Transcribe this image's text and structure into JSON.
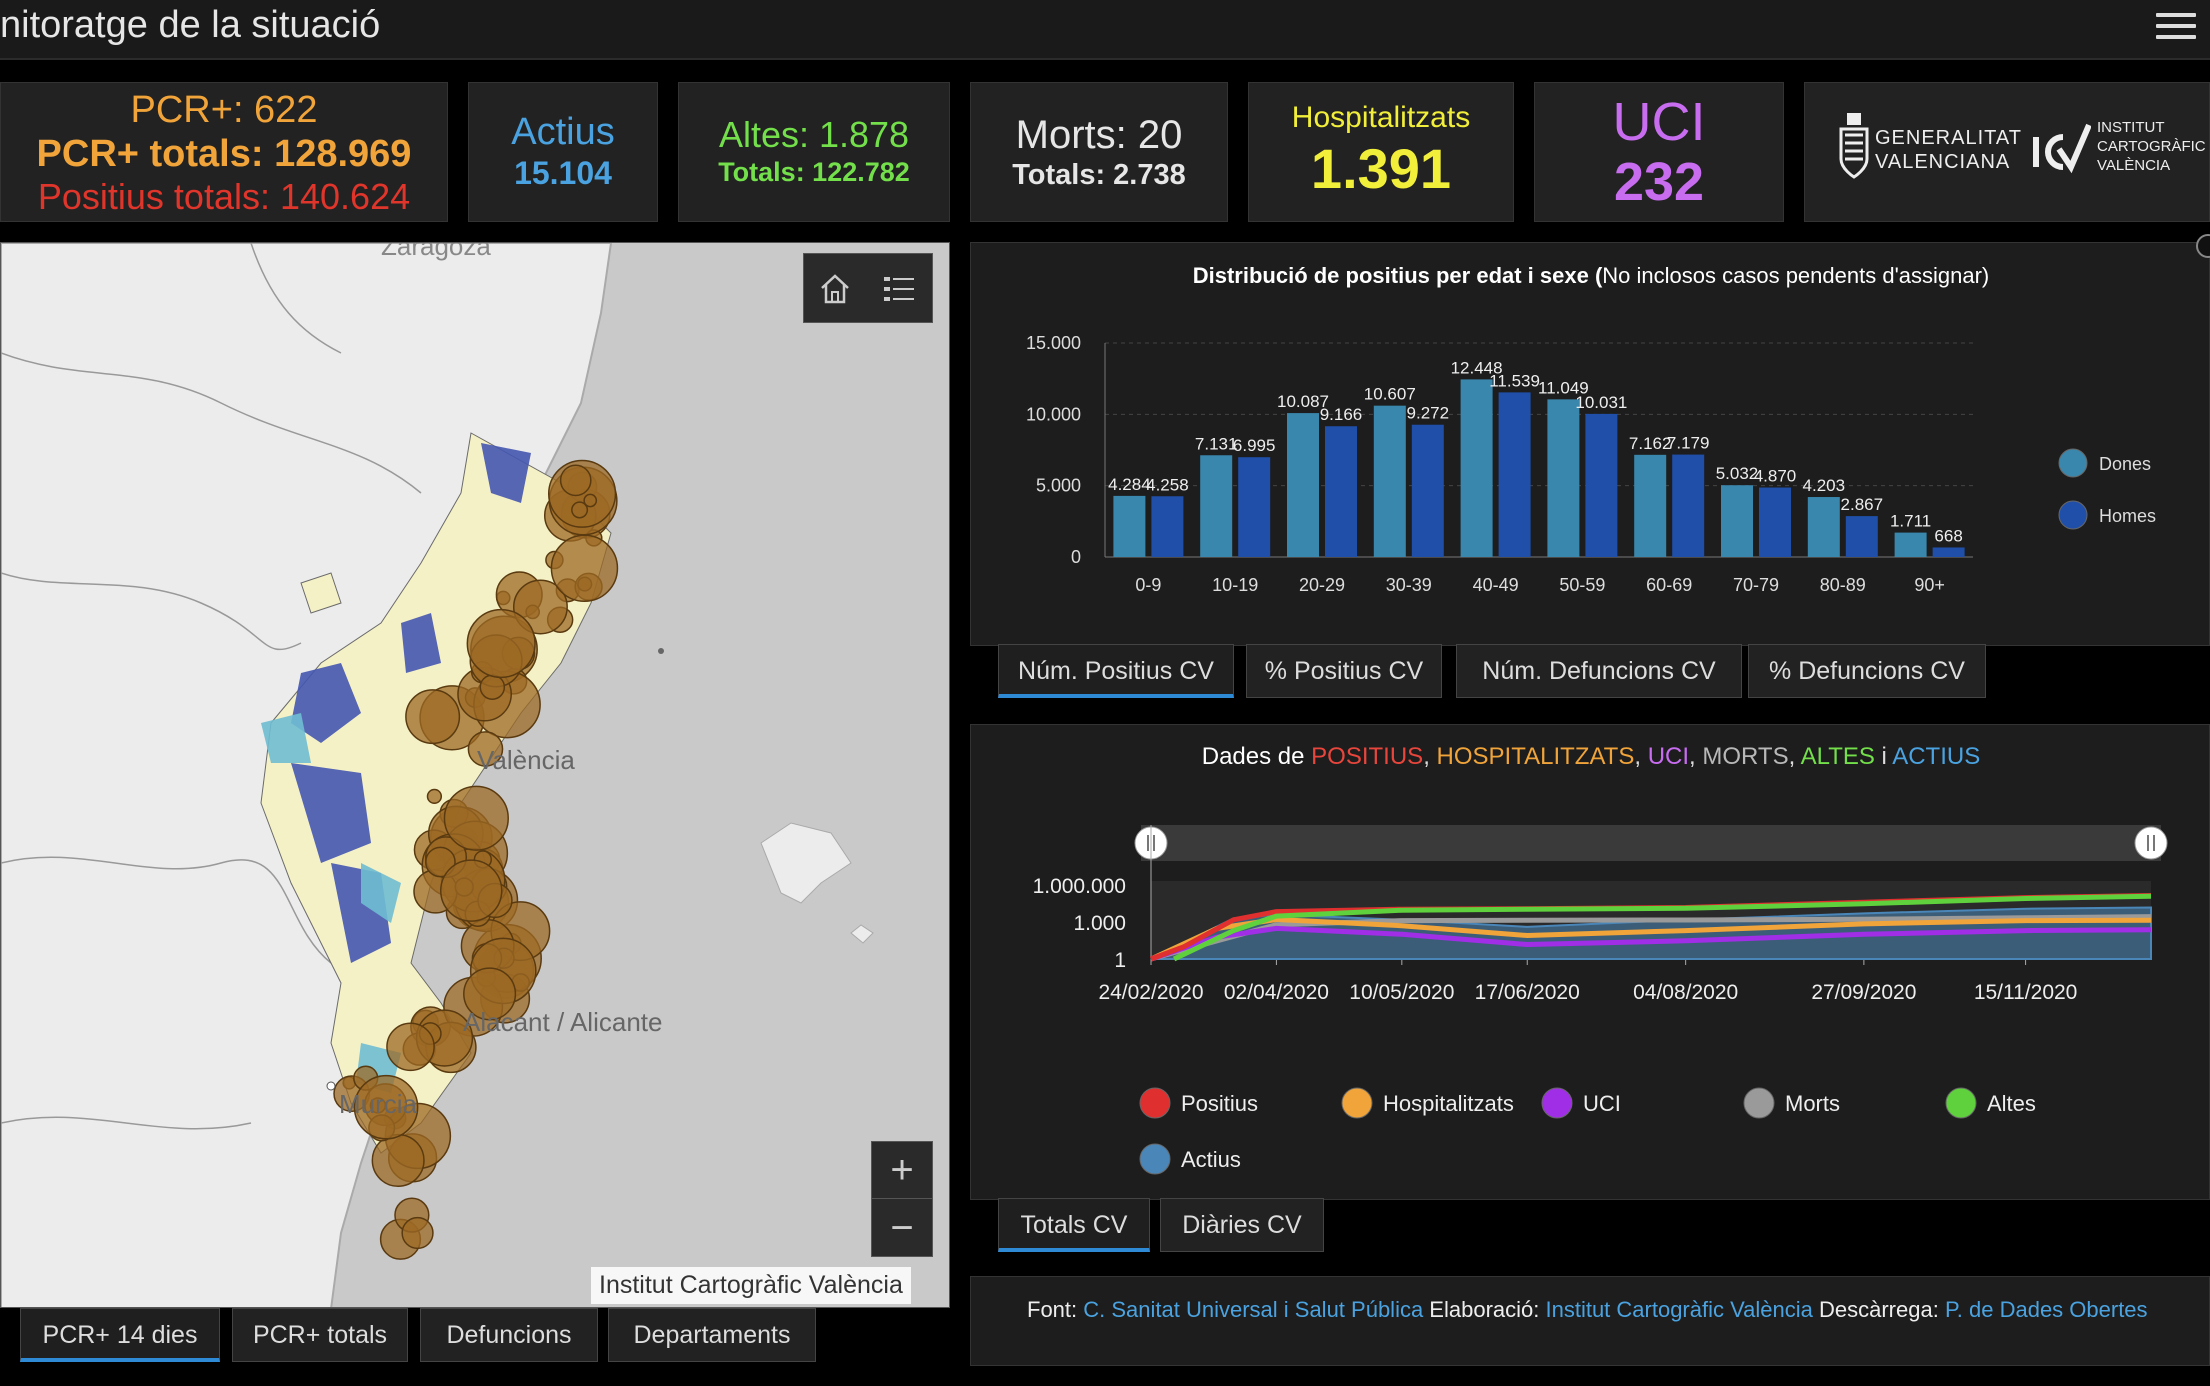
{
  "header": {
    "title": "nitoratge de la situació",
    "menu_icon": "hamburger-menu-icon"
  },
  "cards": {
    "pcr": {
      "line1": "PCR+: 622",
      "line2": "PCR+ totals: 128.969",
      "line3": "Positius totals: 140.624"
    },
    "actius": {
      "label": "Actius",
      "value": "15.104"
    },
    "altes": {
      "label": "Altes: 1.878",
      "totals": "Totals: 122.782"
    },
    "morts": {
      "label": "Morts: 20",
      "totals": "Totals: 2.738"
    },
    "hosp": {
      "label": "Hospitalitzats",
      "value": "1.391"
    },
    "uci": {
      "label": "UCI",
      "value": "232"
    },
    "logos": {
      "gv_line1": "GENERALITAT",
      "gv_line2": "VALENCIANA",
      "icv_line1": "INSTITUT",
      "icv_line2": "CARTOGRÀFIC",
      "icv_line3": "VALÈNCIA"
    }
  },
  "map": {
    "labels": {
      "zaragoza": "Zaragoza",
      "valencia": "València",
      "alicante": "Alacant / Alicante",
      "murcia": "Murcia"
    },
    "attribution": "Institut Cartogràfic València",
    "zoom_in": "+",
    "zoom_out": "−",
    "tabs": [
      "PCR+ 14 dies",
      "PCR+ totals",
      "Defuncions",
      "Departaments"
    ]
  },
  "age_chart": {
    "title_bold": "Distribució de positius per edat i sexe (",
    "title_rest": "No inclosos casos pendents d'assignar)",
    "yticks": [
      "15.000",
      "10.000",
      "5.000",
      "0"
    ],
    "tabs": [
      "Núm. Positius CV",
      "% Positius CV",
      "Núm. Defuncions CV",
      "% Defuncions CV"
    ]
  },
  "chart_data": [
    {
      "type": "bar",
      "title": "Distribució de positius per edat i sexe (No inclosos casos pendents d'assignar)",
      "categories": [
        "0-9",
        "10-19",
        "20-29",
        "30-39",
        "40-49",
        "50-59",
        "60-69",
        "70-79",
        "80-89",
        "90+"
      ],
      "series": [
        {
          "name": "Dones",
          "values": [
            4284,
            7131,
            10087,
            10607,
            12448,
            11049,
            7162,
            5032,
            4203,
            1711
          ],
          "labels": [
            "4.284",
            "7.131",
            "10.087",
            "10.607",
            "12.448",
            "11.049",
            "7.162",
            "5.032",
            "4.203",
            "1.711"
          ]
        },
        {
          "name": "Homes",
          "values": [
            4258,
            6995,
            9166,
            9272,
            11539,
            10031,
            7179,
            4870,
            2867,
            668
          ],
          "labels": [
            "4.258",
            "6.995",
            "9.166",
            "9.272",
            "11.539",
            "10.031",
            "7.179",
            "4.870",
            "2.867",
            "668"
          ]
        }
      ],
      "ylim": [
        0,
        15000
      ],
      "colors": {
        "Dones": "#3a87ad",
        "Homes": "#1f4fa8"
      },
      "legend": "right"
    },
    {
      "type": "line",
      "title": "Dades de POSITIUS, HOSPITALITZATS, UCI, MORTS, ALTES i ACTIUS",
      "x_labels": [
        "24/02/2020",
        "02/04/2020",
        "10/05/2020",
        "17/06/2020",
        "04/08/2020",
        "27/09/2020",
        "15/11/2020"
      ],
      "yscale": "log",
      "yticks": [
        "1.000.000",
        "1.000",
        "1"
      ],
      "series": [
        {
          "name": "Positius",
          "color": "#e02f2f",
          "points": [
            [
              "24/02/2020",
              1
            ],
            [
              "05/03/2020",
              10
            ],
            [
              "20/03/2020",
              1500
            ],
            [
              "02/04/2020",
              7000
            ],
            [
              "10/05/2020",
              11000
            ],
            [
              "17/06/2020",
              12000
            ],
            [
              "04/08/2020",
              15000
            ],
            [
              "27/09/2020",
              40000
            ],
            [
              "15/11/2020",
              95000
            ],
            [
              "23/12/2020",
              140624
            ]
          ]
        },
        {
          "name": "Hospitalitzats",
          "color": "#f0a43a",
          "points": [
            [
              "24/02/2020",
              1
            ],
            [
              "15/03/2020",
              300
            ],
            [
              "02/04/2020",
              1600
            ],
            [
              "10/05/2020",
              500
            ],
            [
              "17/06/2020",
              80
            ],
            [
              "04/08/2020",
              200
            ],
            [
              "27/09/2020",
              700
            ],
            [
              "15/11/2020",
              1300
            ],
            [
              "23/12/2020",
              1391
            ]
          ]
        },
        {
          "name": "UCI",
          "color": "#a02ee6",
          "points": [
            [
              "24/02/2020",
              1
            ],
            [
              "15/03/2020",
              60
            ],
            [
              "02/04/2020",
              300
            ],
            [
              "10/05/2020",
              100
            ],
            [
              "17/06/2020",
              15
            ],
            [
              "04/08/2020",
              30
            ],
            [
              "27/09/2020",
              100
            ],
            [
              "15/11/2020",
              200
            ],
            [
              "23/12/2020",
              232
            ]
          ]
        },
        {
          "name": "Morts",
          "color": "#9a9a9a",
          "points": [
            [
              "24/02/2020",
              1
            ],
            [
              "15/03/2020",
              30
            ],
            [
              "02/04/2020",
              600
            ],
            [
              "10/05/2020",
              1300
            ],
            [
              "17/06/2020",
              1400
            ],
            [
              "04/08/2020",
              1450
            ],
            [
              "27/09/2020",
              1700
            ],
            [
              "15/11/2020",
              2200
            ],
            [
              "23/12/2020",
              2738
            ]
          ]
        },
        {
          "name": "Altes",
          "color": "#5fd13d",
          "points": [
            [
              "02/03/2020",
              1
            ],
            [
              "20/03/2020",
              200
            ],
            [
              "02/04/2020",
              3000
            ],
            [
              "10/05/2020",
              9000
            ],
            [
              "17/06/2020",
              11000
            ],
            [
              "04/08/2020",
              13000
            ],
            [
              "27/09/2020",
              30000
            ],
            [
              "15/11/2020",
              80000
            ],
            [
              "23/12/2020",
              122782
            ]
          ]
        },
        {
          "name": "Actius",
          "color": "#4a86b8",
          "points": [
            [
              "24/02/2020",
              1
            ],
            [
              "20/03/2020",
              2000
            ],
            [
              "02/04/2020",
              4000
            ],
            [
              "10/05/2020",
              1500
            ],
            [
              "17/06/2020",
              400
            ],
            [
              "04/08/2020",
              1500
            ],
            [
              "27/09/2020",
              5000
            ],
            [
              "15/11/2020",
              12000
            ],
            [
              "23/12/2020",
              15104
            ]
          ]
        }
      ],
      "legend": "bottom"
    }
  ],
  "timeline": {
    "title_prefix": "Dades de ",
    "parts": [
      {
        "text": "POSITIUS",
        "color": "#e8463c"
      },
      {
        "text": ", ",
        "color": "#dddddd"
      },
      {
        "text": "HOSPITALITZATS",
        "color": "#f0a43a"
      },
      {
        "text": ", ",
        "color": "#dddddd"
      },
      {
        "text": "UCI",
        "color": "#c86cf0"
      },
      {
        "text": ", ",
        "color": "#dddddd"
      },
      {
        "text": "MORTS",
        "color": "#b8b8b8"
      },
      {
        "text": ", ",
        "color": "#dddddd"
      },
      {
        "text": "ALTES",
        "color": "#73df4a"
      },
      {
        "text": " i ",
        "color": "#dddddd"
      },
      {
        "text": "ACTIUS",
        "color": "#4aa3e0"
      }
    ],
    "legend": [
      "Positius",
      "Hospitalitzats",
      "UCI",
      "Morts",
      "Altes",
      "Actius"
    ],
    "tabs": [
      "Totals CV",
      "Diàries CV"
    ]
  },
  "footer": {
    "font_label": "Font: ",
    "font_value": "C. Sanitat Universal i Salut Pública",
    "elab_label": " Elaboració: ",
    "elab_value": "Institut Cartogràfic València",
    "desc_label": " Descàrrega: ",
    "desc_value": "P. de Dades Obertes",
    "link_color": "#4aa3e0"
  }
}
